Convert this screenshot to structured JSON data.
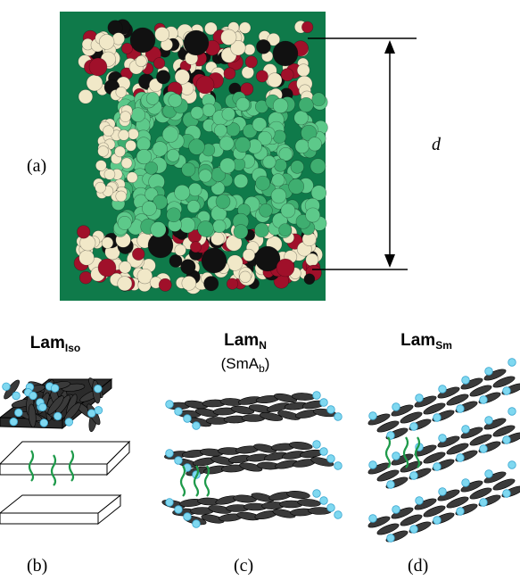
{
  "panel_a": {
    "label": "(a)",
    "dimension": "d"
  },
  "panels": [
    {
      "title": "Lam",
      "subscript": "Iso",
      "label": "(b)"
    },
    {
      "title": "Lam",
      "subscript": "N",
      "subtitle": {
        "text": "(SmA",
        "subscript": "b",
        "close": ")"
      },
      "label": "(c)"
    },
    {
      "title": "Lam",
      "subscript": "Sm",
      "label": "(d)"
    }
  ]
}
